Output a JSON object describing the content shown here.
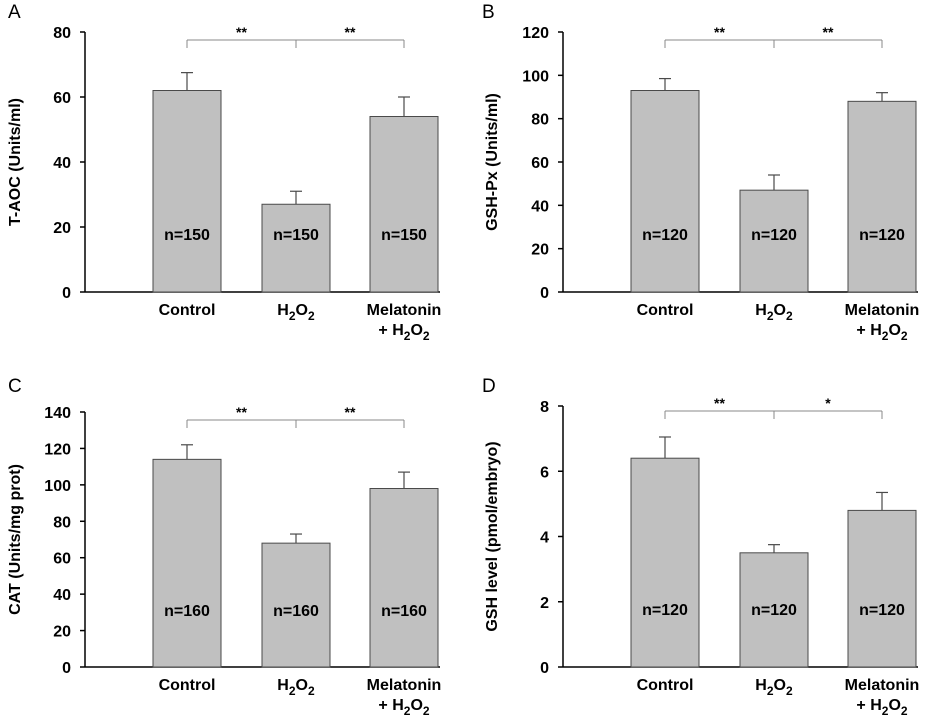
{
  "chart_data": [
    {
      "type": "bar",
      "panel": "A",
      "categories": [
        "Control",
        "H2O2",
        "Melatonin + H2O2"
      ],
      "category_labels": [
        [
          "Control"
        ],
        [
          "H",
          "2",
          "O",
          "2"
        ],
        [
          "Melatonin",
          "+ H",
          "2",
          "O",
          "2"
        ]
      ],
      "values": [
        62,
        27,
        54
      ],
      "errors": [
        5.5,
        4,
        6
      ],
      "n_labels": [
        "n=150",
        "n=150",
        "n=150"
      ],
      "ylabel": "T-AOC (Units/ml)",
      "ylim": [
        0,
        80
      ],
      "yticks": [
        0,
        20,
        40,
        60,
        80
      ],
      "significance": [
        {
          "from": 0,
          "to": 1,
          "label": "**"
        },
        {
          "from": 1,
          "to": 2,
          "label": "**"
        }
      ],
      "bar_color": "#c0c0c0"
    },
    {
      "type": "bar",
      "panel": "B",
      "categories": [
        "Control",
        "H2O2",
        "Melatonin + H2O2"
      ],
      "values": [
        93,
        47,
        88
      ],
      "errors": [
        5.5,
        7,
        4
      ],
      "n_labels": [
        "n=120",
        "n=120",
        "n=120"
      ],
      "ylabel": "GSH-Px (Units/ml)",
      "ylim": [
        0,
        120
      ],
      "yticks": [
        0,
        20,
        40,
        60,
        80,
        100,
        120
      ],
      "significance": [
        {
          "from": 0,
          "to": 1,
          "label": "**"
        },
        {
          "from": 1,
          "to": 2,
          "label": "**"
        }
      ],
      "bar_color": "#c0c0c0"
    },
    {
      "type": "bar",
      "panel": "C",
      "categories": [
        "Control",
        "H2O2",
        "Melatonin + H2O2"
      ],
      "values": [
        114,
        68,
        98
      ],
      "errors": [
        8,
        5,
        9
      ],
      "n_labels": [
        "n=160",
        "n=160",
        "n=160"
      ],
      "ylabel": "CAT (Units/mg prot)",
      "ylim": [
        0,
        140
      ],
      "yticks": [
        0,
        20,
        40,
        60,
        80,
        100,
        120,
        140
      ],
      "significance": [
        {
          "from": 0,
          "to": 1,
          "label": "**"
        },
        {
          "from": 1,
          "to": 2,
          "label": "**"
        }
      ],
      "bar_color": "#c0c0c0"
    },
    {
      "type": "bar",
      "panel": "D",
      "categories": [
        "Control",
        "H2O2",
        "Melatonin + H2O2"
      ],
      "values": [
        6.4,
        3.5,
        4.8
      ],
      "errors": [
        0.65,
        0.25,
        0.55
      ],
      "n_labels": [
        "n=120",
        "n=120",
        "n=120"
      ],
      "ylabel": "GSH level (pmol/embryo)",
      "ylim": [
        0,
        8
      ],
      "yticks": [
        0,
        2,
        4,
        6,
        8
      ],
      "significance": [
        {
          "from": 0,
          "to": 1,
          "label": "**"
        },
        {
          "from": 1,
          "to": 2,
          "label": "*"
        }
      ],
      "bar_color": "#c0c0c0"
    }
  ]
}
